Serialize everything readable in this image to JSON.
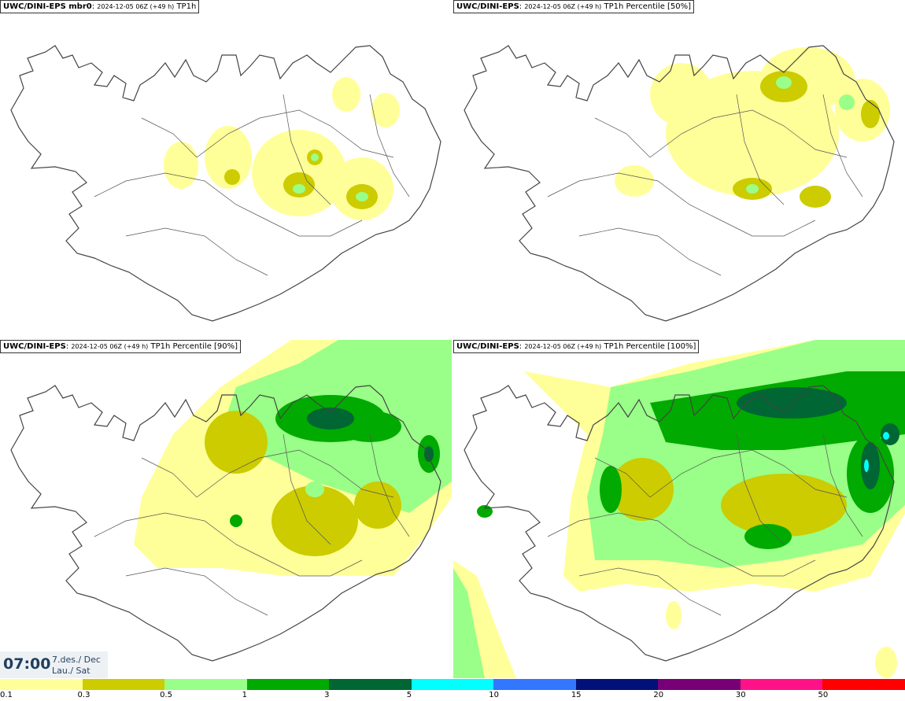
{
  "panels": [
    {
      "id": "tl",
      "model": "UWC/DINI-EPS mbr0",
      "run": "2024-12-05 06Z (+49 h)",
      "field": "TP1h"
    },
    {
      "id": "tr",
      "model": "UWC/DINI-EPS",
      "run": "2024-12-05 06Z (+49 h)",
      "field": "TP1h Percentile [50%]"
    },
    {
      "id": "bl",
      "model": "UWC/DINI-EPS",
      "run": "2024-12-05 06Z (+49 h)",
      "field": "TP1h Percentile [90%]"
    },
    {
      "id": "br",
      "model": "UWC/DINI-EPS",
      "run": "2024-12-05 06Z (+49 h)",
      "field": "TP1h Percentile [100%]"
    }
  ],
  "valid_time": {
    "clock": "07:00",
    "date_line1": "7.des./ Dec",
    "date_line2": "Lau./ Sat"
  },
  "legend": {
    "colors": [
      "#ffff99",
      "#cccc00",
      "#99ff88",
      "#00aa00",
      "#006633",
      "#00ffff",
      "#3377ff",
      "#001177",
      "#770077",
      "#ff1188",
      "#ff0000"
    ],
    "labels": [
      "0.1",
      "0.3",
      "0.5",
      "1",
      "3",
      "5",
      "10",
      "15",
      "20",
      "30",
      "50"
    ]
  }
}
